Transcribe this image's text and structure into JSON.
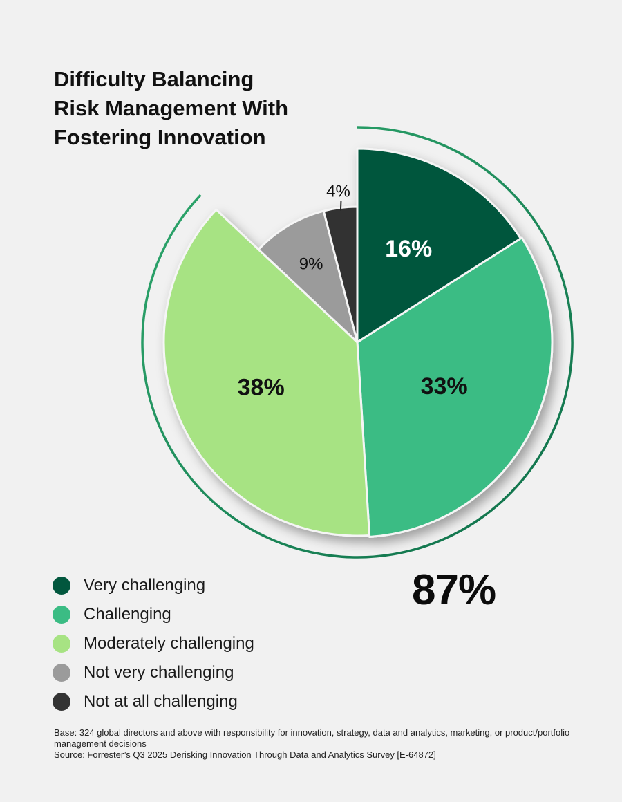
{
  "chart_data": {
    "type": "pie",
    "title_lines": [
      "Difficulty Balancing",
      "Risk Management With",
      "Fostering Innovation"
    ],
    "slices": [
      {
        "label": "Very challenging",
        "value": 16,
        "display": "16%",
        "color": "#02573e"
      },
      {
        "label": "Challenging",
        "value": 33,
        "display": "33%",
        "color": "#3bbc84"
      },
      {
        "label": "Moderately challenging",
        "value": 38,
        "display": "38%",
        "color": "#a7e383"
      },
      {
        "label": "Not very challenging",
        "value": 9,
        "display": "9%",
        "color": "#9b9b9b"
      },
      {
        "label": "Not at all challenging",
        "value": 4,
        "display": "4%",
        "color": "#333333"
      }
    ],
    "highlight_total": "87%",
    "legend_position": "bottom-left"
  },
  "footnote": {
    "base": "Base: 324 global directors and above with responsibility for innovation, strategy, data and analytics, marketing, or product/portfolio management decisions",
    "source": "Source: Forrester’s Q3 2025 Derisking Innovation Through Data and Analytics Survey [E-64872]"
  }
}
